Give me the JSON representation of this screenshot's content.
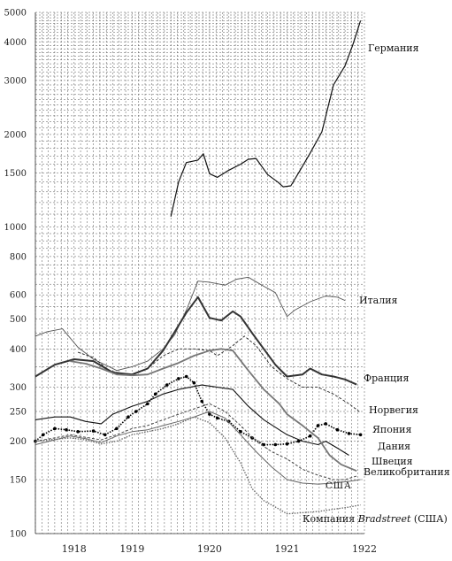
{
  "chart_data": {
    "type": "line",
    "title": "",
    "xlabel": "",
    "ylabel": "",
    "yscale": "log",
    "ylim": [
      100,
      5000
    ],
    "xlim": [
      1917.75,
      1922.0
    ],
    "x_ticks": [
      {
        "x": 1918.25,
        "label": "1918"
      },
      {
        "x": 1919.0,
        "label": "1919"
      },
      {
        "x": 1920.0,
        "label": "1920"
      },
      {
        "x": 1921.0,
        "label": "1921"
      },
      {
        "x": 1922.0,
        "label": "1922"
      }
    ],
    "y_ticks": [
      {
        "v": 100,
        "label": "100"
      },
      {
        "v": 150,
        "label": "150"
      },
      {
        "v": 200,
        "label": "200"
      },
      {
        "v": 250,
        "label": "250"
      },
      {
        "v": 300,
        "label": "300"
      },
      {
        "v": 400,
        "label": "400"
      },
      {
        "v": 500,
        "label": "500"
      },
      {
        "v": 600,
        "label": "600"
      },
      {
        "v": 800,
        "label": "800"
      },
      {
        "v": 1000,
        "label": "1000"
      },
      {
        "v": 1500,
        "label": "1500"
      },
      {
        "v": 2000,
        "label": "2000"
      },
      {
        "v": 3000,
        "label": "3000"
      },
      {
        "v": 4000,
        "label": "4000"
      },
      {
        "v": 5000,
        "label": "5000"
      }
    ],
    "grid": true,
    "series": [
      {
        "name": "Германия",
        "color": "#111111",
        "style": "solid",
        "width": 1.2,
        "x": [
          1919.5,
          1919.6,
          1919.7,
          1919.85,
          1919.92,
          1920.0,
          1920.1,
          1920.25,
          1920.4,
          1920.5,
          1920.6,
          1920.75,
          1920.88,
          1920.95,
          1921.05,
          1921.15,
          1921.3,
          1921.45,
          1921.6,
          1921.75,
          1921.85,
          1921.95
        ],
        "y": [
          1080,
          1400,
          1620,
          1650,
          1730,
          1490,
          1450,
          1530,
          1600,
          1660,
          1670,
          1480,
          1400,
          1350,
          1360,
          1500,
          1740,
          2040,
          2900,
          3350,
          3920,
          4700
        ]
      },
      {
        "name": "Италия",
        "color": "#555555",
        "style": "solid",
        "width": 0.9,
        "x": [
          1917.75,
          1917.9,
          1918.1,
          1918.3,
          1918.5,
          1918.65,
          1918.8,
          1919.0,
          1919.2,
          1919.4,
          1919.55,
          1919.7,
          1919.85,
          1920.0,
          1920.2,
          1920.35,
          1920.5,
          1920.7,
          1920.85,
          1921.0,
          1921.1,
          1921.3,
          1921.5,
          1921.65,
          1921.75
        ],
        "y": [
          440,
          455,
          465,
          405,
          370,
          355,
          340,
          350,
          365,
          400,
          445,
          535,
          665,
          660,
          645,
          675,
          685,
          640,
          610,
          510,
          535,
          570,
          595,
          590,
          575
        ]
      },
      {
        "name": "Франция",
        "color": "#333333",
        "style": "solid",
        "width": 2.0,
        "x": [
          1917.75,
          1918.0,
          1918.25,
          1918.5,
          1918.75,
          1919.0,
          1919.2,
          1919.4,
          1919.55,
          1919.7,
          1919.85,
          1920.0,
          1920.15,
          1920.3,
          1920.4,
          1920.55,
          1920.7,
          1920.85,
          1921.0,
          1921.2,
          1921.3,
          1921.45,
          1921.6,
          1921.75,
          1921.9
        ],
        "y": [
          325,
          355,
          370,
          365,
          335,
          330,
          345,
          395,
          455,
          525,
          590,
          505,
          495,
          530,
          510,
          450,
          400,
          355,
          325,
          330,
          345,
          330,
          325,
          318,
          306
        ]
      },
      {
        "name": "Норвегия",
        "color": "#222222",
        "style": "dashed",
        "width": 0.9,
        "x": [
          1918.3,
          1918.5,
          1918.7,
          1918.9,
          1919.0,
          1919.2,
          1919.4,
          1919.6,
          1919.8,
          1920.0,
          1920.1,
          1920.3,
          1920.45,
          1920.6,
          1920.8,
          1921.0,
          1921.2,
          1921.4,
          1921.6,
          1921.8,
          1921.95
        ],
        "y": [
          390,
          375,
          340,
          330,
          330,
          345,
          380,
          400,
          400,
          395,
          380,
          410,
          440,
          410,
          350,
          320,
          300,
          300,
          285,
          265,
          248
        ]
      },
      {
        "name": "Япония",
        "color": "#000000",
        "style": "dotted",
        "width": 1.6,
        "markers": true,
        "x": [
          1917.75,
          1917.85,
          1918.0,
          1918.15,
          1918.3,
          1918.5,
          1918.65,
          1918.8,
          1918.95,
          1919.05,
          1919.2,
          1919.3,
          1919.45,
          1919.6,
          1919.7,
          1919.8,
          1919.9,
          1920.0,
          1920.1,
          1920.25,
          1920.4,
          1920.55,
          1920.7,
          1920.85,
          1921.0,
          1921.15,
          1921.3,
          1921.4,
          1921.5,
          1921.65,
          1921.8,
          1921.95
        ],
        "y": [
          200,
          210,
          220,
          218,
          215,
          216,
          210,
          220,
          240,
          250,
          265,
          285,
          305,
          320,
          325,
          310,
          270,
          245,
          238,
          232,
          215,
          205,
          195,
          195,
          196,
          200,
          208,
          225,
          228,
          218,
          212,
          210
        ]
      },
      {
        "name": "Дания",
        "color": "#111111",
        "style": "solid",
        "width": 1.1,
        "x": [
          1917.75,
          1918.0,
          1918.2,
          1918.4,
          1918.6,
          1918.75,
          1919.0,
          1919.2,
          1919.4,
          1919.6,
          1919.75,
          1919.9,
          1920.1,
          1920.3,
          1920.5,
          1920.7,
          1920.9,
          1921.0,
          1921.2,
          1921.4,
          1921.5,
          1921.65,
          1921.8
        ],
        "y": [
          235,
          240,
          240,
          232,
          228,
          245,
          260,
          270,
          285,
          295,
          300,
          305,
          300,
          295,
          260,
          235,
          218,
          210,
          200,
          195,
          200,
          190,
          180
        ]
      },
      {
        "name": "Швеция",
        "color": "#777777",
        "style": "solid",
        "width": 1.8,
        "x": [
          1918.2,
          1918.4,
          1918.6,
          1918.8,
          1919.0,
          1919.2,
          1919.4,
          1919.6,
          1919.8,
          1920.0,
          1920.15,
          1920.3,
          1920.5,
          1920.7,
          1920.9,
          1921.0,
          1921.2,
          1921.4,
          1921.55,
          1921.7,
          1921.9
        ],
        "y": [
          365,
          358,
          345,
          330,
          328,
          330,
          345,
          360,
          380,
          395,
          400,
          395,
          340,
          295,
          265,
          245,
          225,
          205,
          180,
          168,
          160
        ]
      },
      {
        "name": "Великобритания",
        "color": "#444444",
        "style": "dashed",
        "width": 1.0,
        "x": [
          1917.75,
          1918.0,
          1918.2,
          1918.4,
          1918.6,
          1918.8,
          1919.0,
          1919.2,
          1919.4,
          1919.6,
          1919.8,
          1920.0,
          1920.2,
          1920.4,
          1920.6,
          1920.8,
          1921.0,
          1921.2,
          1921.4,
          1921.6,
          1921.75,
          1921.9
        ],
        "y": [
          200,
          205,
          210,
          206,
          202,
          210,
          220,
          225,
          235,
          245,
          255,
          265,
          250,
          225,
          200,
          185,
          175,
          162,
          155,
          150,
          150,
          154
        ]
      },
      {
        "name": "США",
        "color": "#666666",
        "style": "solid",
        "width": 1.0,
        "x": [
          1917.75,
          1918.0,
          1918.2,
          1918.4,
          1918.6,
          1918.8,
          1919.0,
          1919.2,
          1919.4,
          1919.6,
          1919.8,
          1920.0,
          1920.2,
          1920.4,
          1920.6,
          1920.8,
          1921.0,
          1921.2,
          1921.4,
          1921.6,
          1921.8,
          1921.95
        ],
        "y": [
          195,
          202,
          208,
          204,
          198,
          208,
          215,
          218,
          225,
          232,
          240,
          250,
          238,
          210,
          185,
          165,
          150,
          146,
          145,
          146,
          148,
          150
        ]
      },
      {
        "name": "Компания Bradstreet (США)",
        "color": "#666666",
        "style": "dotted",
        "width": 1.3,
        "x": [
          1917.75,
          1918.0,
          1918.2,
          1918.4,
          1918.6,
          1918.8,
          1919.0,
          1919.2,
          1919.4,
          1919.6,
          1919.8,
          1920.0,
          1920.2,
          1920.4,
          1920.55,
          1920.7,
          1920.9,
          1921.0,
          1921.2,
          1921.4,
          1921.6,
          1921.8,
          1921.95
        ],
        "y": [
          200,
          203,
          205,
          202,
          196,
          200,
          210,
          215,
          220,
          228,
          240,
          230,
          205,
          170,
          140,
          128,
          120,
          116,
          117,
          118,
          120,
          122,
          124
        ]
      }
    ],
    "series_labels": [
      {
        "text": "Германия"
      },
      {
        "text": "Италия"
      },
      {
        "text": "Франция"
      },
      {
        "text": "Норвегия"
      },
      {
        "text": "Япония"
      },
      {
        "text": "Дания"
      },
      {
        "text": "Швеция"
      },
      {
        "text": "Великобритания"
      },
      {
        "text": "США"
      },
      {
        "text": "Компания Bradstreet (США)",
        "prefix": "Компания ",
        "italic": "Bradstreet",
        "suffix": " (США)"
      }
    ]
  }
}
